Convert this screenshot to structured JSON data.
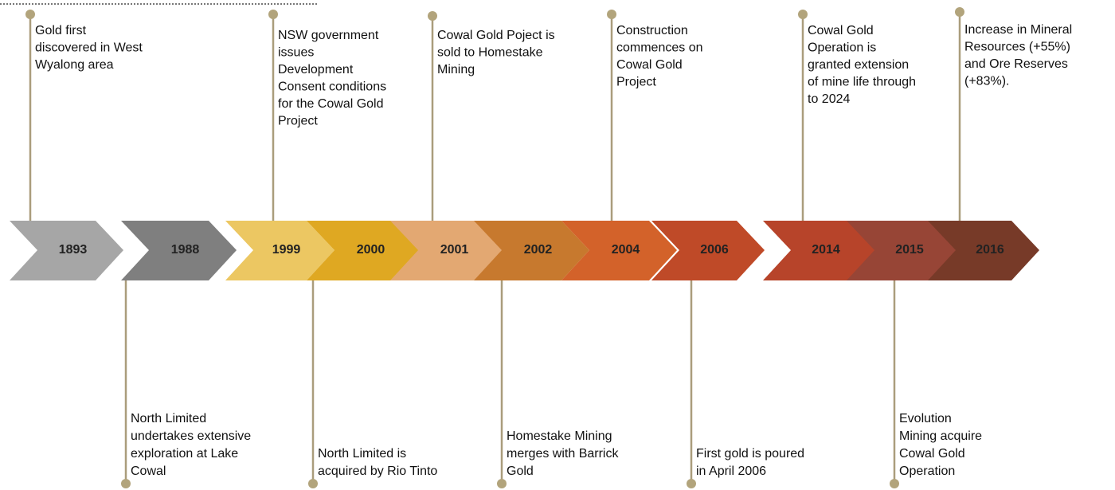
{
  "events": [
    {
      "year": "1893",
      "color": "#a6a6a6",
      "text": [
        "Gold first",
        "discovered in West",
        "Wyalong area"
      ]
    },
    {
      "year": "1988",
      "color": "#7f7f7f",
      "text": [
        "North Limited",
        "undertakes extensive",
        "exploration at Lake",
        "Cowal"
      ]
    },
    {
      "year": "1999",
      "color": "#ecc762",
      "text": [
        "NSW government",
        "issues",
        "Development",
        "Consent conditions",
        "for the Cowal Gold",
        "Project"
      ]
    },
    {
      "year": "2000",
      "color": "#dfa822",
      "text": [
        "North Limited is",
        "acquired by Rio Tinto"
      ]
    },
    {
      "year": "2001",
      "color": "#e3a872",
      "text": [
        "Cowal Gold Poject is",
        "sold to Homestake",
        "Mining"
      ]
    },
    {
      "year": "2002",
      "color": "#c7792e",
      "text": [
        "Homestake Mining",
        "merges with Barrick",
        "Gold"
      ]
    },
    {
      "year": "2004",
      "color": "#d3622a",
      "text": [
        "Construction",
        "commences on",
        "Cowal Gold",
        "Project"
      ]
    },
    {
      "year": "2006",
      "color": "#bf4a28",
      "text": [
        "First gold is poured",
        "in April 2006"
      ]
    },
    {
      "year": "2014",
      "color": "#b7442a",
      "text": [
        "Cowal Gold",
        "Operation is",
        "granted extension",
        "of mine life through",
        "to 2024"
      ]
    },
    {
      "year": "2015",
      "color": "#974536",
      "text": [
        "Evolution",
        "Mining acquire",
        "Cowal Gold",
        "Operation"
      ]
    },
    {
      "year": "2016",
      "color": "#773a28",
      "text": [
        "Increase in Mineral",
        "Resources (+55%)",
        "and Ore Reserves",
        "(+83%)."
      ]
    }
  ]
}
